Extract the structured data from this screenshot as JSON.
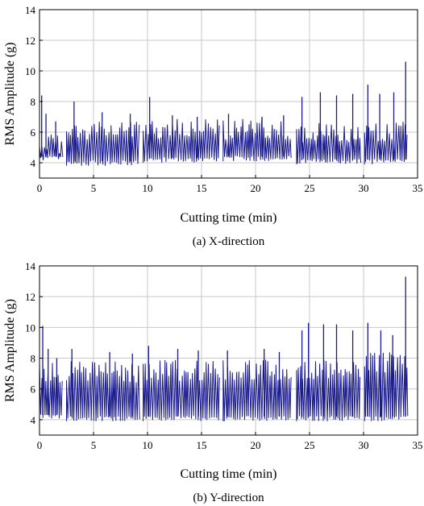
{
  "colors": {
    "series": "#1a1a8c",
    "grid": "#c8c8c8",
    "frame": "#000000"
  },
  "chart_data": [
    {
      "type": "line",
      "caption": "(a) X-direction",
      "xlabel": "Cutting time (min)",
      "ylabel": "RMS Amplitude (g)",
      "xlim": [
        0,
        35
      ],
      "ylim": [
        3,
        14
      ],
      "xticks": [
        0,
        5,
        10,
        15,
        20,
        25,
        30,
        35
      ],
      "yticks": [
        4,
        6,
        8,
        10,
        12,
        14
      ],
      "grid": true,
      "segments": [
        {
          "start": 0.0,
          "end": 2.2,
          "low": 4.1,
          "high": 6.0,
          "spikes": [
            [
              0.2,
              8.4
            ],
            [
              0.6,
              7.2
            ],
            [
              1.5,
              6.7
            ]
          ]
        },
        {
          "start": 2.5,
          "end": 9.3,
          "low": 3.8,
          "high": 6.8,
          "spikes": [
            [
              3.2,
              8.0
            ],
            [
              5.8,
              7.3
            ],
            [
              8.4,
              7.2
            ]
          ]
        },
        {
          "start": 9.6,
          "end": 16.7,
          "low": 4.0,
          "high": 6.9,
          "spikes": [
            [
              10.2,
              8.3
            ],
            [
              12.3,
              7.1
            ],
            [
              14.6,
              7.0
            ]
          ]
        },
        {
          "start": 17.0,
          "end": 23.4,
          "low": 4.1,
          "high": 6.9,
          "spikes": [
            [
              17.5,
              7.2
            ],
            [
              20.6,
              7.0
            ],
            [
              22.6,
              7.1
            ]
          ]
        },
        {
          "start": 23.8,
          "end": 29.8,
          "low": 3.9,
          "high": 6.6,
          "spikes": [
            [
              24.3,
              8.3
            ],
            [
              26.0,
              8.6
            ],
            [
              27.5,
              8.4
            ],
            [
              29.0,
              8.5
            ]
          ]
        },
        {
          "start": 30.1,
          "end": 34.1,
          "low": 3.9,
          "high": 6.8,
          "spikes": [
            [
              30.4,
              9.1
            ],
            [
              31.5,
              8.5
            ],
            [
              32.8,
              8.6
            ],
            [
              33.9,
              10.6
            ]
          ]
        }
      ]
    },
    {
      "type": "line",
      "caption": "(b) Y-direction",
      "xlabel": "Cutting time (min)",
      "ylabel": "RMS Amplitude (g)",
      "xlim": [
        0,
        35
      ],
      "ylim": [
        3,
        14
      ],
      "xticks": [
        0,
        5,
        10,
        15,
        20,
        25,
        30,
        35
      ],
      "yticks": [
        4,
        6,
        8,
        10,
        12,
        14
      ],
      "grid": true,
      "segments": [
        {
          "start": 0.0,
          "end": 2.2,
          "low": 4.0,
          "high": 7.8,
          "spikes": [
            [
              0.3,
              10.1
            ],
            [
              0.8,
              8.6
            ],
            [
              1.6,
              8.0
            ]
          ]
        },
        {
          "start": 2.5,
          "end": 9.3,
          "low": 3.9,
          "high": 7.8,
          "spikes": [
            [
              3.0,
              8.6
            ],
            [
              6.5,
              8.4
            ],
            [
              8.6,
              8.3
            ]
          ]
        },
        {
          "start": 9.6,
          "end": 16.7,
          "low": 3.9,
          "high": 7.9,
          "spikes": [
            [
              10.1,
              8.8
            ],
            [
              12.8,
              8.6
            ],
            [
              14.7,
              8.5
            ]
          ]
        },
        {
          "start": 17.0,
          "end": 23.4,
          "low": 3.9,
          "high": 7.9,
          "spikes": [
            [
              17.4,
              8.5
            ],
            [
              20.8,
              8.6
            ],
            [
              22.2,
              8.4
            ]
          ]
        },
        {
          "start": 23.8,
          "end": 29.8,
          "low": 3.9,
          "high": 8.0,
          "spikes": [
            [
              24.3,
              9.8
            ],
            [
              24.9,
              10.3
            ],
            [
              26.3,
              10.2
            ],
            [
              27.5,
              10.2
            ],
            [
              29.0,
              9.8
            ]
          ]
        },
        {
          "start": 30.1,
          "end": 34.1,
          "low": 3.9,
          "high": 8.4,
          "spikes": [
            [
              30.4,
              10.3
            ],
            [
              31.6,
              9.8
            ],
            [
              32.7,
              9.5
            ],
            [
              33.9,
              13.3
            ]
          ]
        }
      ]
    }
  ]
}
